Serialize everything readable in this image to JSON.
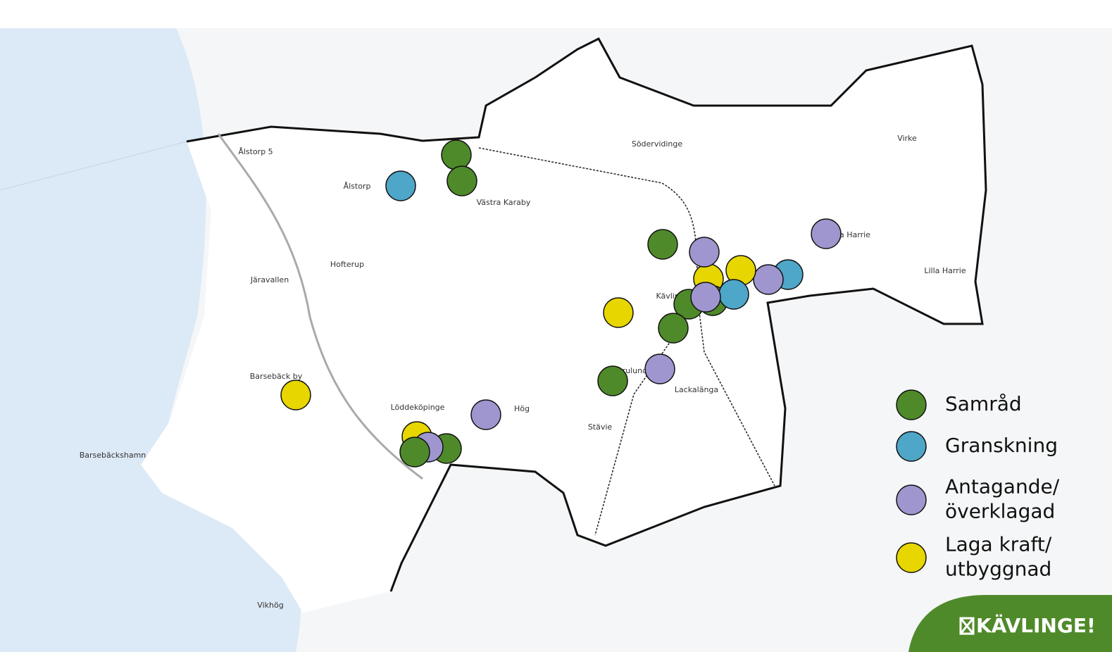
{
  "map": {
    "places": [
      "Ålstorp 5",
      "Ålstorp",
      "Västra Karaby",
      "Hofterup",
      "Järavallen",
      "Barsebäck by",
      "Löddeköpinge",
      "Barsebäckshamn",
      "Vikhög",
      "Hög",
      "Stävie",
      "Lackalänga",
      "Kävlinge",
      "Furulund",
      "Södervidinge",
      "Virke",
      "Lilla Harrie",
      "Västra Harrie"
    ]
  },
  "legend": {
    "items": [
      {
        "label": [
          "Samråd"
        ],
        "color": "#4f8a2a"
      },
      {
        "label": [
          "Granskning"
        ],
        "color": "#4ea6c9"
      },
      {
        "label": [
          "Antagande/",
          "överklagad"
        ],
        "color": "#9f96cf"
      },
      {
        "label": [
          "Laga kraft/",
          "utbyggnad"
        ],
        "color": "#e7d600"
      }
    ]
  },
  "logo": {
    "text": "KÄVLINGE!"
  }
}
